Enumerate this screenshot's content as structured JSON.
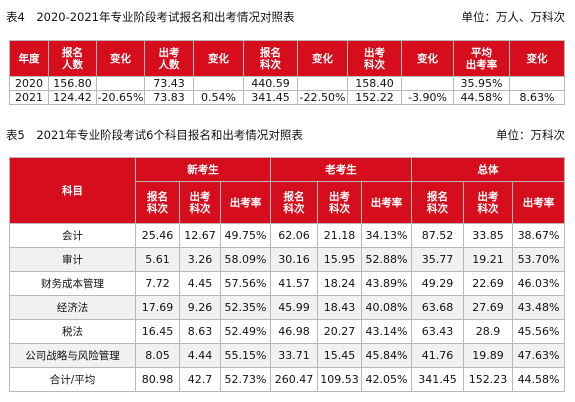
{
  "table4": {
    "caption": "表4　2020-2021年专业阶段考试报名和出考情况对照表",
    "unit": "单位：万人、万科次",
    "headers": [
      "年度",
      "报名\n人数",
      "变化",
      "出考\n人数",
      "变化",
      "报名\n科次",
      "变化",
      "出考\n科次",
      "变化",
      "平均\n出考率",
      "变化"
    ],
    "rows": [
      [
        "2020",
        "156.80",
        "",
        "73.43",
        "",
        "440.59",
        "",
        "158.40",
        "",
        "35.95%",
        ""
      ],
      [
        "2021",
        "124.42",
        "-20.65%",
        "73.83",
        "0.54%",
        "341.45",
        "-22.50%",
        "152.22",
        "-3.90%",
        "44.58%",
        "8.63%"
      ]
    ]
  },
  "table5": {
    "caption": "表5　2021年专业阶段考试6个科目报名和出考情况对照表",
    "unit": "单位：万科次",
    "subject_header": "科目",
    "groups": [
      "新考生",
      "老考生",
      "总体"
    ],
    "subheaders": [
      "报名\n科次",
      "出考\n科次",
      "出考率",
      "报名\n科次",
      "出考\n科次",
      "出考率",
      "报名\n科次",
      "出考\n科次",
      "出考率"
    ],
    "rows": [
      [
        "会计",
        "25.46",
        "12.67",
        "49.75%",
        "62.06",
        "21.18",
        "34.13%",
        "87.52",
        "33.85",
        "38.67%"
      ],
      [
        "审计",
        "5.61",
        "3.26",
        "58.09%",
        "30.16",
        "15.95",
        "52.88%",
        "35.77",
        "19.21",
        "53.70%"
      ],
      [
        "财务成本管理",
        "7.72",
        "4.45",
        "57.56%",
        "41.57",
        "18.24",
        "43.89%",
        "49.29",
        "22.69",
        "46.03%"
      ],
      [
        "经济法",
        "17.69",
        "9.26",
        "52.35%",
        "45.99",
        "18.43",
        "40.08%",
        "63.68",
        "27.69",
        "43.48%"
      ],
      [
        "税法",
        "16.45",
        "8.63",
        "52.49%",
        "46.98",
        "20.27",
        "43.14%",
        "63.43",
        "28.9",
        "45.56%"
      ],
      [
        "公司战略与风险管理",
        "8.05",
        "4.44",
        "55.15%",
        "33.71",
        "15.45",
        "45.84%",
        "41.76",
        "19.89",
        "47.63%"
      ],
      [
        "合计/平均",
        "80.98",
        "42.7",
        "52.73%",
        "260.47",
        "109.53",
        "42.05%",
        "341.45",
        "152.23",
        "44.58%"
      ]
    ]
  }
}
